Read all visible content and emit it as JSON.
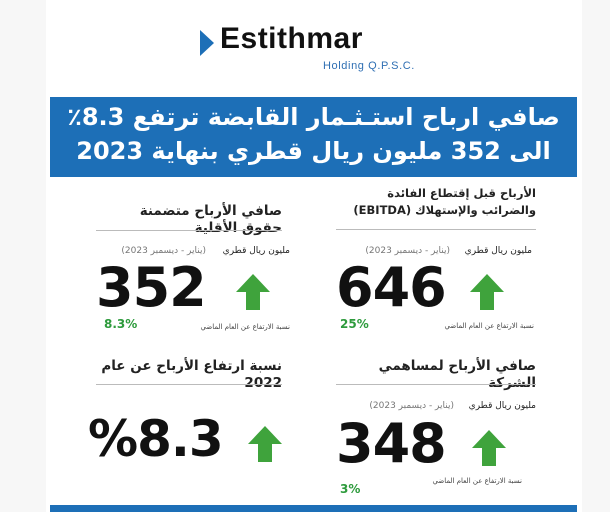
{
  "brand": {
    "name": "Estithmar",
    "subtitle": "Holding Q.P.S.C.",
    "accent_color": "#1d6fb7"
  },
  "banner": {
    "line1": "صافي ارباح استـثـمار القابضة ترتفع 8.3٪",
    "line2": "الى 352 مليون ريال قطري بنهاية 2023"
  },
  "cards": {
    "net_profit_incl_minority": {
      "title": "صافي الأرباح متضمنة حقوق الأقلية",
      "unit": "مليون ريال قطري",
      "period": "(يناير - ديسمبر 2023)",
      "value": "352",
      "growth": "8.3%",
      "growth_label": "نسبة الارتفاع عن العام الماضي"
    },
    "ebitda": {
      "title_line1": "الأرباح قبل إقتطاع الفائدة",
      "title_line2": "والضرائب والإستهلاك (EBITDA)",
      "unit": "مليون ريال قطري",
      "period": "(يناير - ديسمبر 2023)",
      "value": "646",
      "growth": "25%",
      "growth_label": "نسبة الارتفاع عن العام الماضي"
    },
    "increase_vs_2022": {
      "title": "نسبة ارتفاع الأرباح عن عام 2022",
      "value": "%8.3"
    },
    "net_profit_shareholders": {
      "title": "صافي الأرباح لمساهمي الشركة",
      "unit": "مليون ريال قطري",
      "period": "(يناير - ديسمبر 2023)",
      "value": "348",
      "growth": "3%",
      "growth_label": "نسبة الارتفاع عن العام الماضي"
    }
  },
  "icons": {
    "up_arrow": "up-arrow-icon",
    "logo_mark": "logo-chevron-icon"
  },
  "colors": {
    "arrow_green": "#3fa33c",
    "growth_green": "#2e9b3d"
  }
}
